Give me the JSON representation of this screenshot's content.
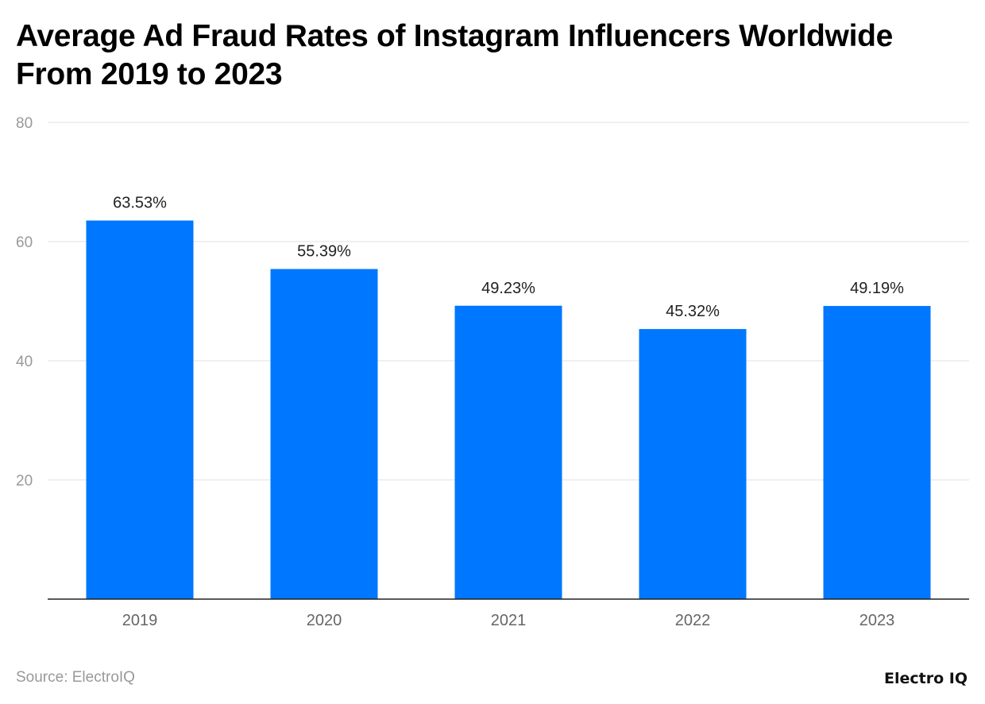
{
  "chart_data": {
    "type": "bar",
    "title": "Average Ad Fraud Rates of Instagram Influencers Worldwide From 2019 to 2023",
    "categories": [
      "2019",
      "2020",
      "2021",
      "2022",
      "2023"
    ],
    "values": [
      63.53,
      55.39,
      49.23,
      45.32,
      49.19
    ],
    "data_labels": [
      "63.53%",
      "55.39%",
      "49.23%",
      "45.32%",
      "49.19%"
    ],
    "xlabel": "",
    "ylabel": "",
    "ylim": [
      0,
      80
    ],
    "yticks": [
      20,
      40,
      60,
      80
    ],
    "grid": true,
    "bar_color": "#0077FF"
  },
  "footer": {
    "source": "Source: ElectroIQ",
    "logo": "Electro IQ"
  }
}
